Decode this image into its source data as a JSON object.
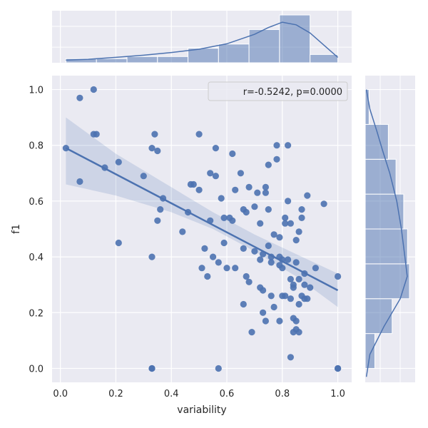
{
  "chart_data": {
    "type": "jointplot",
    "title": "",
    "xlabel": "variability",
    "ylabel": "f1",
    "xlim": [
      -0.03,
      1.05
    ],
    "ylim": [
      -0.05,
      1.05
    ],
    "x_ticks": [
      "0.0",
      "0.2",
      "0.4",
      "0.6",
      "0.8",
      "1.0"
    ],
    "y_ticks": [
      "0.0",
      "0.2",
      "0.4",
      "0.6",
      "0.8",
      "1.0"
    ],
    "grid": true,
    "legend": {
      "text": "r=-0.5242, p=0.0000",
      "position": "top-right"
    },
    "colors": {
      "points": "#4c72b0",
      "fit_line": "#4c72b0",
      "band": "#4c72b0",
      "hist": "#4c72b0",
      "background": "#eaeaf2",
      "grid": "#ffffff"
    },
    "scatter": [
      [
        0.02,
        0.79
      ],
      [
        0.07,
        0.97
      ],
      [
        0.07,
        0.67
      ],
      [
        0.12,
        0.84
      ],
      [
        0.12,
        1.0
      ],
      [
        0.13,
        0.84
      ],
      [
        0.16,
        0.72
      ],
      [
        0.21,
        0.74
      ],
      [
        0.21,
        0.45
      ],
      [
        0.3,
        0.69
      ],
      [
        0.33,
        0.79
      ],
      [
        0.34,
        0.84
      ],
      [
        0.33,
        0.4
      ],
      [
        0.33,
        0.0
      ],
      [
        0.33,
        0.0
      ],
      [
        0.35,
        0.78
      ],
      [
        0.35,
        0.53
      ],
      [
        0.36,
        0.57
      ],
      [
        0.37,
        0.61
      ],
      [
        0.44,
        0.49
      ],
      [
        0.46,
        0.56
      ],
      [
        0.47,
        0.66
      ],
      [
        0.48,
        0.66
      ],
      [
        0.5,
        0.64
      ],
      [
        0.5,
        0.84
      ],
      [
        0.51,
        0.36
      ],
      [
        0.52,
        0.43
      ],
      [
        0.53,
        0.33
      ],
      [
        0.54,
        0.7
      ],
      [
        0.54,
        0.53
      ],
      [
        0.55,
        0.4
      ],
      [
        0.56,
        0.79
      ],
      [
        0.56,
        0.69
      ],
      [
        0.57,
        0.38
      ],
      [
        0.57,
        0.0
      ],
      [
        0.58,
        0.61
      ],
      [
        0.59,
        0.54
      ],
      [
        0.59,
        0.45
      ],
      [
        0.6,
        0.36
      ],
      [
        0.61,
        0.54
      ],
      [
        0.62,
        0.77
      ],
      [
        0.62,
        0.53
      ],
      [
        0.63,
        0.64
      ],
      [
        0.63,
        0.36
      ],
      [
        0.65,
        0.7
      ],
      [
        0.66,
        0.57
      ],
      [
        0.66,
        0.43
      ],
      [
        0.66,
        0.23
      ],
      [
        0.67,
        0.56
      ],
      [
        0.67,
        0.33
      ],
      [
        0.68,
        0.31
      ],
      [
        0.68,
        0.65
      ],
      [
        0.69,
        0.13
      ],
      [
        0.7,
        0.58
      ],
      [
        0.7,
        0.42
      ],
      [
        0.71,
        0.63
      ],
      [
        0.72,
        0.52
      ],
      [
        0.72,
        0.39
      ],
      [
        0.72,
        0.29
      ],
      [
        0.73,
        0.41
      ],
      [
        0.73,
        0.2
      ],
      [
        0.73,
        0.28
      ],
      [
        0.74,
        0.65
      ],
      [
        0.74,
        0.63
      ],
      [
        0.74,
        0.17
      ],
      [
        0.75,
        0.73
      ],
      [
        0.75,
        0.57
      ],
      [
        0.75,
        0.44
      ],
      [
        0.76,
        0.4
      ],
      [
        0.76,
        0.38
      ],
      [
        0.76,
        0.26
      ],
      [
        0.77,
        0.48
      ],
      [
        0.77,
        0.22
      ],
      [
        0.78,
        0.75
      ],
      [
        0.78,
        0.8
      ],
      [
        0.79,
        0.47
      ],
      [
        0.79,
        0.4
      ],
      [
        0.79,
        0.37
      ],
      [
        0.79,
        0.17
      ],
      [
        0.8,
        0.39
      ],
      [
        0.8,
        0.36
      ],
      [
        0.8,
        0.26
      ],
      [
        0.81,
        0.52
      ],
      [
        0.81,
        0.54
      ],
      [
        0.81,
        0.26
      ],
      [
        0.82,
        0.8
      ],
      [
        0.82,
        0.6
      ],
      [
        0.82,
        0.39
      ],
      [
        0.83,
        0.52
      ],
      [
        0.83,
        0.32
      ],
      [
        0.83,
        0.25
      ],
      [
        0.83,
        0.04
      ],
      [
        0.84,
        0.3
      ],
      [
        0.84,
        0.29
      ],
      [
        0.84,
        0.18
      ],
      [
        0.84,
        0.13
      ],
      [
        0.85,
        0.46
      ],
      [
        0.85,
        0.38
      ],
      [
        0.85,
        0.17
      ],
      [
        0.85,
        0.14
      ],
      [
        0.86,
        0.49
      ],
      [
        0.86,
        0.32
      ],
      [
        0.86,
        0.23
      ],
      [
        0.86,
        0.13
      ],
      [
        0.87,
        0.57
      ],
      [
        0.87,
        0.54
      ],
      [
        0.87,
        0.26
      ],
      [
        0.88,
        0.34
      ],
      [
        0.88,
        0.3
      ],
      [
        0.88,
        0.25
      ],
      [
        0.89,
        0.62
      ],
      [
        0.89,
        0.25
      ],
      [
        0.9,
        0.29
      ],
      [
        0.92,
        0.36
      ],
      [
        0.95,
        0.59
      ],
      [
        1.0,
        0.33
      ],
      [
        1.0,
        0.0
      ],
      [
        1.0,
        0.0
      ]
    ],
    "regression": {
      "x": [
        0.02,
        1.0
      ],
      "y": [
        0.79,
        0.28
      ],
      "band": [
        {
          "x": 0.02,
          "lo": 0.66,
          "hi": 0.9
        },
        {
          "x": 0.2,
          "lo": 0.62,
          "hi": 0.77
        },
        {
          "x": 0.4,
          "lo": 0.56,
          "hi": 0.65
        },
        {
          "x": 0.55,
          "lo": 0.5,
          "hi": 0.56
        },
        {
          "x": 0.7,
          "lo": 0.42,
          "hi": 0.48
        },
        {
          "x": 0.85,
          "lo": 0.33,
          "hi": 0.41
        },
        {
          "x": 1.0,
          "lo": 0.22,
          "hi": 0.34
        }
      ]
    },
    "x_histogram": {
      "bins": [
        [
          0.02,
          0.13
        ],
        [
          0.13,
          0.24
        ],
        [
          0.24,
          0.35
        ],
        [
          0.35,
          0.46
        ],
        [
          0.46,
          0.57
        ],
        [
          0.57,
          0.68
        ],
        [
          0.68,
          0.79
        ],
        [
          0.79,
          0.9
        ],
        [
          0.9,
          1.0
        ]
      ],
      "counts": [
        2,
        2,
        3,
        3,
        7,
        9,
        16,
        23,
        4
      ]
    },
    "x_kde": {
      "x": [
        0.02,
        0.1,
        0.2,
        0.3,
        0.4,
        0.5,
        0.6,
        0.7,
        0.75,
        0.8,
        0.85,
        0.9,
        0.95,
        1.0
      ],
      "density": [
        1.0,
        1.3,
        2.0,
        2.8,
        3.8,
        5.0,
        7.0,
        10.5,
        13.0,
        15.0,
        14.0,
        11.0,
        6.5,
        2.0
      ]
    },
    "y_histogram": {
      "bins": [
        [
          0.0,
          0.125
        ],
        [
          0.125,
          0.25
        ],
        [
          0.25,
          0.375
        ],
        [
          0.375,
          0.5
        ],
        [
          0.5,
          0.625
        ],
        [
          0.625,
          0.75
        ],
        [
          0.75,
          0.875
        ],
        [
          0.875,
          1.0
        ]
      ],
      "counts": [
        5,
        14,
        23,
        22,
        20,
        16,
        12,
        2
      ]
    },
    "y_kde": {
      "y": [
        -0.03,
        0.05,
        0.15,
        0.25,
        0.33,
        0.4,
        0.5,
        0.6,
        0.7,
        0.78,
        0.85,
        0.93,
        1.0
      ],
      "density": [
        0.5,
        2.0,
        8.0,
        15.0,
        18.0,
        17.0,
        15.5,
        13.5,
        10.5,
        7.5,
        5.0,
        2.0,
        0.5
      ]
    }
  }
}
